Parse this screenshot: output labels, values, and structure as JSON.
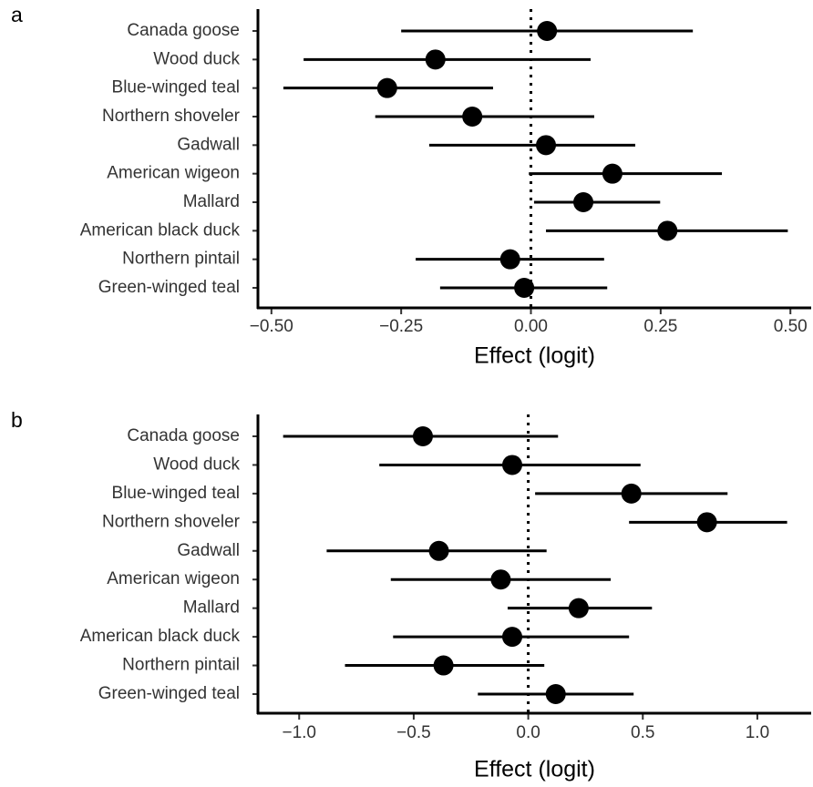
{
  "chart_data": [
    {
      "type": "forest",
      "panel_label": "a",
      "x_label": "Effect (logit)",
      "categories": [
        "Canada goose",
        "Wood duck",
        "Blue-winged teal",
        "Northern shoveler",
        "Gadwall",
        "American wigeon",
        "Mallard",
        "American black duck",
        "Northern pintail",
        "Green-winged teal"
      ],
      "values": [
        0.031,
        -0.184,
        -0.277,
        -0.113,
        0.029,
        0.157,
        0.101,
        0.263,
        -0.04,
        -0.013
      ],
      "lower": [
        -0.25,
        -0.438,
        -0.477,
        -0.3,
        -0.196,
        -0.004,
        0.006,
        0.029,
        -0.222,
        -0.175
      ],
      "upper": [
        0.312,
        0.115,
        -0.073,
        0.122,
        0.201,
        0.368,
        0.249,
        0.495,
        0.141,
        0.147
      ],
      "color": "#000000",
      "reference_line": 0,
      "xlim": [
        -0.526,
        0.54
      ],
      "xticks": [
        {
          "value": -0.5,
          "label": "−0.50"
        },
        {
          "value": -0.25,
          "label": "−0.25"
        },
        {
          "value": 0,
          "label": "0.00"
        },
        {
          "value": 0.25,
          "label": "0.25"
        },
        {
          "value": 0.5,
          "label": "0.50"
        }
      ]
    },
    {
      "type": "forest",
      "panel_label": "b",
      "x_label": "Effect (logit)",
      "categories": [
        "Canada goose",
        "Wood duck",
        "Blue-winged teal",
        "Northern shoveler",
        "Gadwall",
        "American wigeon",
        "Mallard",
        "American black duck",
        "Northern pintail",
        "Green-winged teal"
      ],
      "values": [
        -0.46,
        -0.07,
        0.45,
        0.78,
        -0.39,
        -0.12,
        0.22,
        -0.07,
        -0.37,
        0.12
      ],
      "lower": [
        -1.07,
        -0.65,
        0.03,
        0.44,
        -0.88,
        -0.6,
        -0.09,
        -0.59,
        -0.8,
        -0.22
      ],
      "upper": [
        0.13,
        0.49,
        0.87,
        1.13,
        0.08,
        0.36,
        0.54,
        0.44,
        0.07,
        0.46
      ],
      "color": "#000000",
      "reference_line": 0,
      "xlim": [
        -1.18,
        1.235
      ],
      "xticks": [
        {
          "value": -1,
          "label": "−1.0"
        },
        {
          "value": -0.5,
          "label": "−0.5"
        },
        {
          "value": 0,
          "label": "0.0"
        },
        {
          "value": 0.5,
          "label": "0.5"
        },
        {
          "value": 1,
          "label": "1.0"
        }
      ]
    }
  ]
}
